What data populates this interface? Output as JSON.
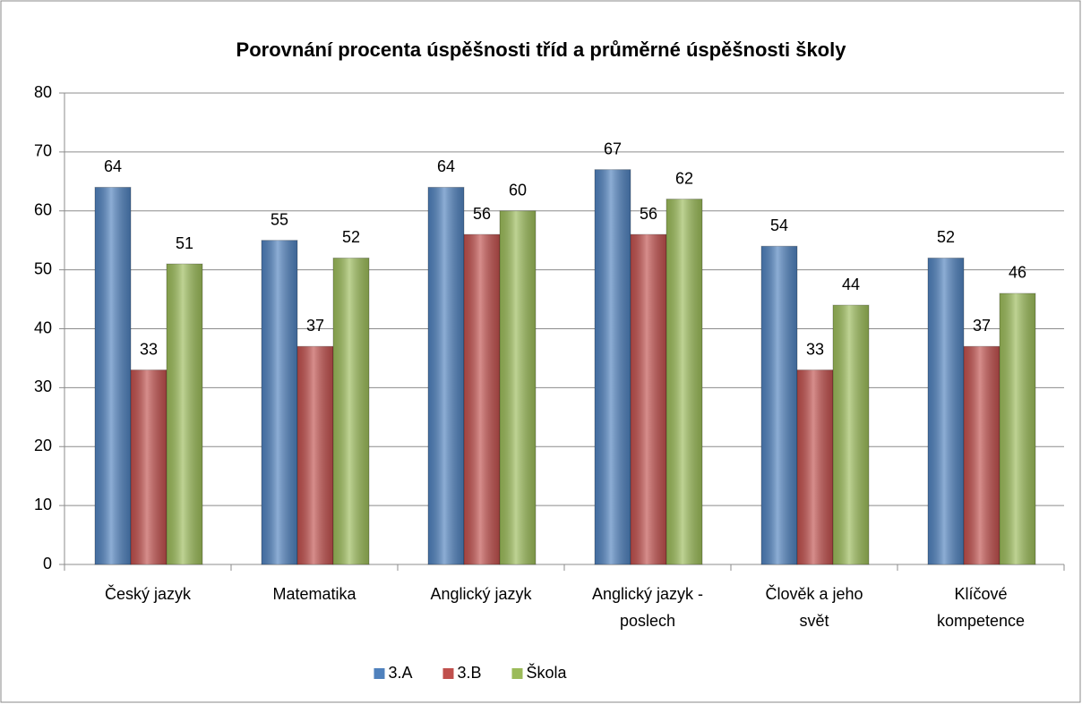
{
  "chart_data": {
    "type": "bar",
    "title": "Porovnání procenta úspěšnosti tříd a průměrné úspěšnosti školy",
    "categories": [
      "Český jazyk",
      "Matematika",
      "Anglický jazyk",
      "Anglický jazyk - poslech",
      "Člověk a jeho svět",
      "Klíčové kompetence"
    ],
    "series": [
      {
        "name": "3.A",
        "color": "#4f81bd",
        "values": [
          64,
          55,
          64,
          67,
          54,
          52
        ]
      },
      {
        "name": "3.B",
        "color": "#c0504d",
        "values": [
          33,
          37,
          56,
          56,
          33,
          37
        ]
      },
      {
        "name": "Škola",
        "color": "#9bbb59",
        "values": [
          51,
          52,
          60,
          62,
          44,
          46
        ]
      }
    ],
    "ylim": [
      0,
      80
    ],
    "yticks": [
      0,
      10,
      20,
      30,
      40,
      50,
      60,
      70,
      80
    ],
    "grid": true,
    "legend": "bottom"
  }
}
